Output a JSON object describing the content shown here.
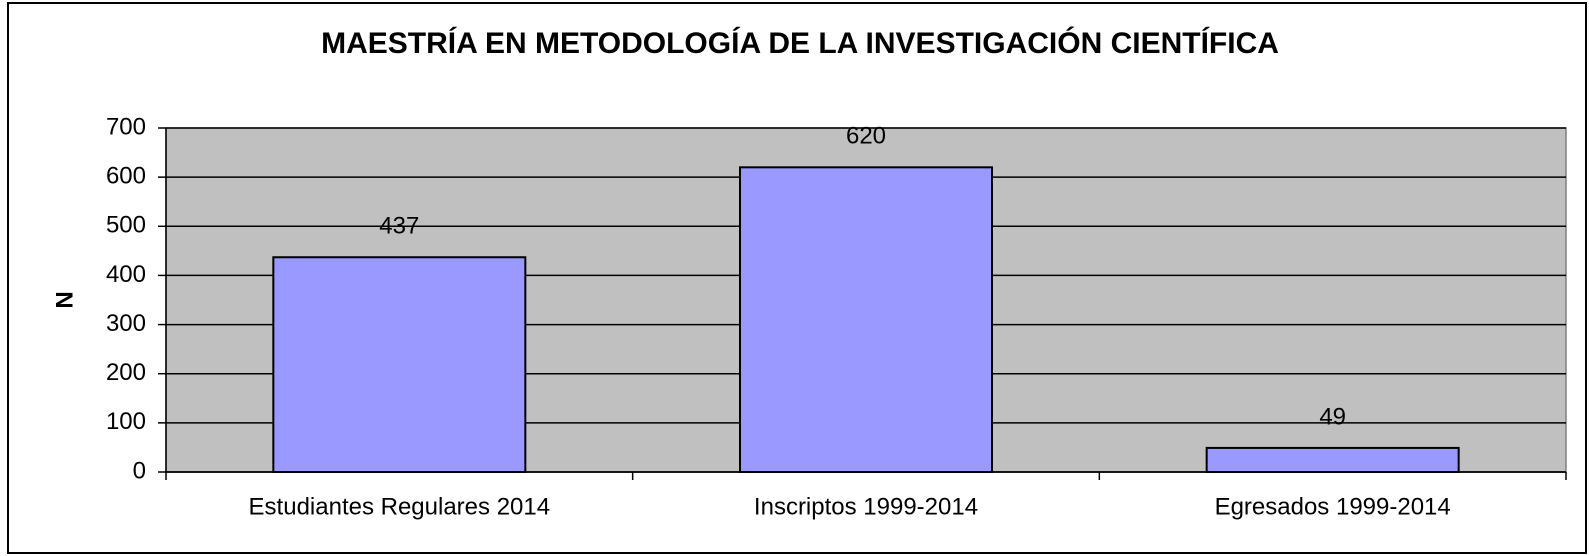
{
  "chart_data": {
    "type": "bar",
    "title": "MAESTRÍA EN METODOLOGÍA DE LA INVESTIGACIÓN CIENTÍFICA",
    "y_label": "N",
    "categories": [
      "Estudiantes Regulares 2014",
      "Inscriptos 1999-2014",
      "Egresados 1999-2014"
    ],
    "values": [
      437,
      620,
      49
    ],
    "color": "#9999ff",
    "ylim": [
      0,
      700
    ],
    "yticks": [
      0,
      100,
      200,
      300,
      400,
      500,
      600,
      700
    ],
    "grid": true
  }
}
